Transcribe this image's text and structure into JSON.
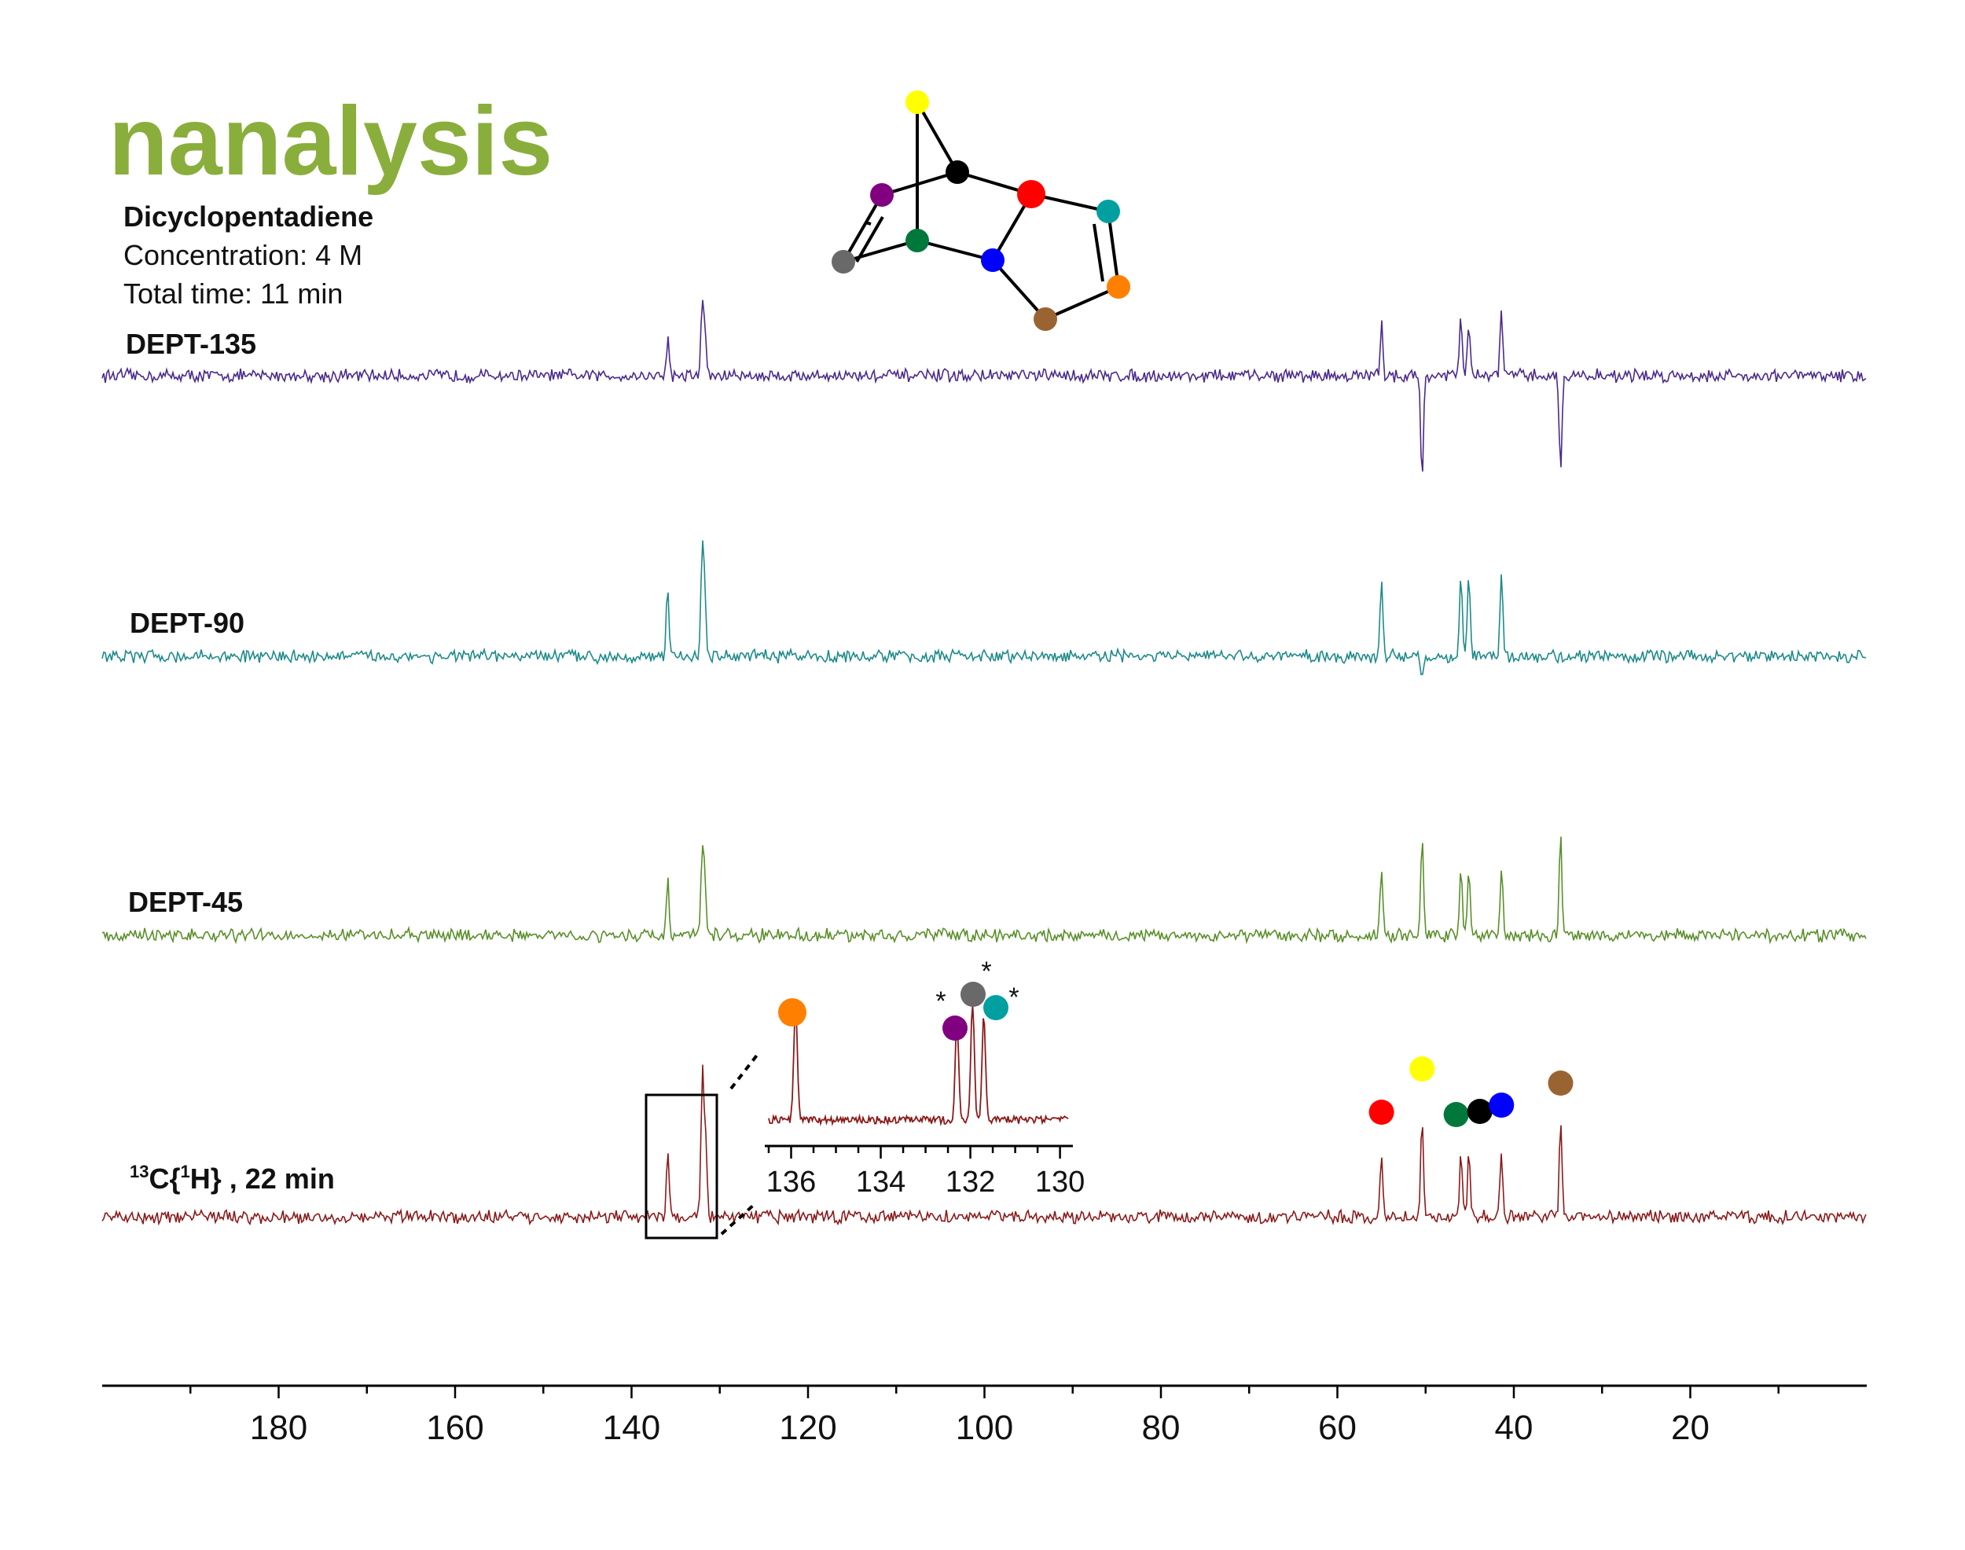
{
  "logo": {
    "text": "nanalysis",
    "color": "#8aae3c"
  },
  "sample": {
    "compound": "Dicyclopentadiene",
    "concentration": "Concentration: 4 M",
    "total_time": "Total time: 11 min"
  },
  "colors": {
    "dept135": "#4b2a8c",
    "dept90": "#1e8a8a",
    "dept45": "#5a8f2a",
    "c13": "#8b1a1a",
    "atom_red": "#ff0000",
    "atom_yellow": "#ffff00",
    "atom_black": "#000000",
    "atom_purple": "#800080",
    "atom_green": "#00783c",
    "atom_gray": "#696969",
    "atom_blue": "#0000ff",
    "atom_teal": "#00a0a0",
    "atom_orange": "#ff8000",
    "atom_brown": "#9a6432"
  },
  "chart_data": {
    "type": "line",
    "x_axis": {
      "reversed": true,
      "range": [
        200,
        0
      ],
      "ticks": [
        180,
        160,
        140,
        120,
        100,
        80,
        60,
        40,
        20
      ],
      "tick_labels": [
        "180",
        "160",
        "140",
        "120",
        "100",
        "80",
        "60",
        "40",
        "20"
      ]
    },
    "series": [
      {
        "name": "DEPT-135",
        "peaks": [
          {
            "ppm": 135.9,
            "intensity": 0.48
          },
          {
            "ppm": 132.0,
            "intensity": 0.85
          },
          {
            "ppm": 131.7,
            "intensity": 0.55
          },
          {
            "ppm": 55.0,
            "intensity": 0.65
          },
          {
            "ppm": 50.4,
            "intensity": -1.3
          },
          {
            "ppm": 46.0,
            "intensity": 0.75
          },
          {
            "ppm": 45.1,
            "intensity": 0.65
          },
          {
            "ppm": 41.4,
            "intensity": 0.85
          },
          {
            "ppm": 34.7,
            "intensity": -1.2
          }
        ]
      },
      {
        "name": "DEPT-90",
        "peaks": [
          {
            "ppm": 135.9,
            "intensity": 0.85
          },
          {
            "ppm": 132.0,
            "intensity": 1.3
          },
          {
            "ppm": 131.7,
            "intensity": 0.75
          },
          {
            "ppm": 55.0,
            "intensity": 0.95
          },
          {
            "ppm": 46.0,
            "intensity": 1.05
          },
          {
            "ppm": 45.1,
            "intensity": 1.0
          },
          {
            "ppm": 41.4,
            "intensity": 1.05
          },
          {
            "ppm": 50.4,
            "intensity": -0.25
          }
        ]
      },
      {
        "name": "DEPT-45",
        "peaks": [
          {
            "ppm": 135.9,
            "intensity": 0.7
          },
          {
            "ppm": 132.0,
            "intensity": 0.95
          },
          {
            "ppm": 131.7,
            "intensity": 0.75
          },
          {
            "ppm": 55.0,
            "intensity": 0.85
          },
          {
            "ppm": 50.4,
            "intensity": 1.3
          },
          {
            "ppm": 46.0,
            "intensity": 0.85
          },
          {
            "ppm": 45.1,
            "intensity": 0.8
          },
          {
            "ppm": 41.4,
            "intensity": 0.85
          },
          {
            "ppm": 34.7,
            "intensity": 1.3
          }
        ]
      },
      {
        "name": "13C{1H} , 22 min",
        "peaks": [
          {
            "ppm": 135.9,
            "intensity": 0.8,
            "atom": "orange"
          },
          {
            "ppm": 132.0,
            "intensity": 1.0,
            "atom": "gray"
          },
          {
            "ppm": 131.9,
            "intensity": 0.75,
            "atom": "purple"
          },
          {
            "ppm": 131.6,
            "intensity": 0.8,
            "atom": "teal"
          },
          {
            "ppm": 55.0,
            "intensity": 0.75,
            "atom": "red"
          },
          {
            "ppm": 50.4,
            "intensity": 1.1,
            "atom": "yellow"
          },
          {
            "ppm": 46.0,
            "intensity": 0.72,
            "atom": "green"
          },
          {
            "ppm": 45.1,
            "intensity": 0.72,
            "atom": "black"
          },
          {
            "ppm": 41.4,
            "intensity": 0.78,
            "atom": "blue"
          },
          {
            "ppm": 34.7,
            "intensity": 1.05,
            "atom": "brown"
          }
        ]
      }
    ],
    "inset": {
      "range": [
        136.5,
        129.8
      ],
      "ticks": [
        136,
        134,
        132,
        130
      ],
      "tick_labels": [
        "136",
        "134",
        "132",
        "130"
      ],
      "peaks": [
        {
          "ppm": 135.9,
          "intensity": 1.0,
          "atom": "orange"
        },
        {
          "ppm": 132.3,
          "intensity": 0.85,
          "atom": "purple",
          "marker": "*"
        },
        {
          "ppm": 131.95,
          "intensity": 1.0,
          "atom": "gray",
          "marker": "*"
        },
        {
          "ppm": 131.7,
          "intensity": 0.9,
          "atom": "teal",
          "marker": "*"
        }
      ]
    }
  }
}
